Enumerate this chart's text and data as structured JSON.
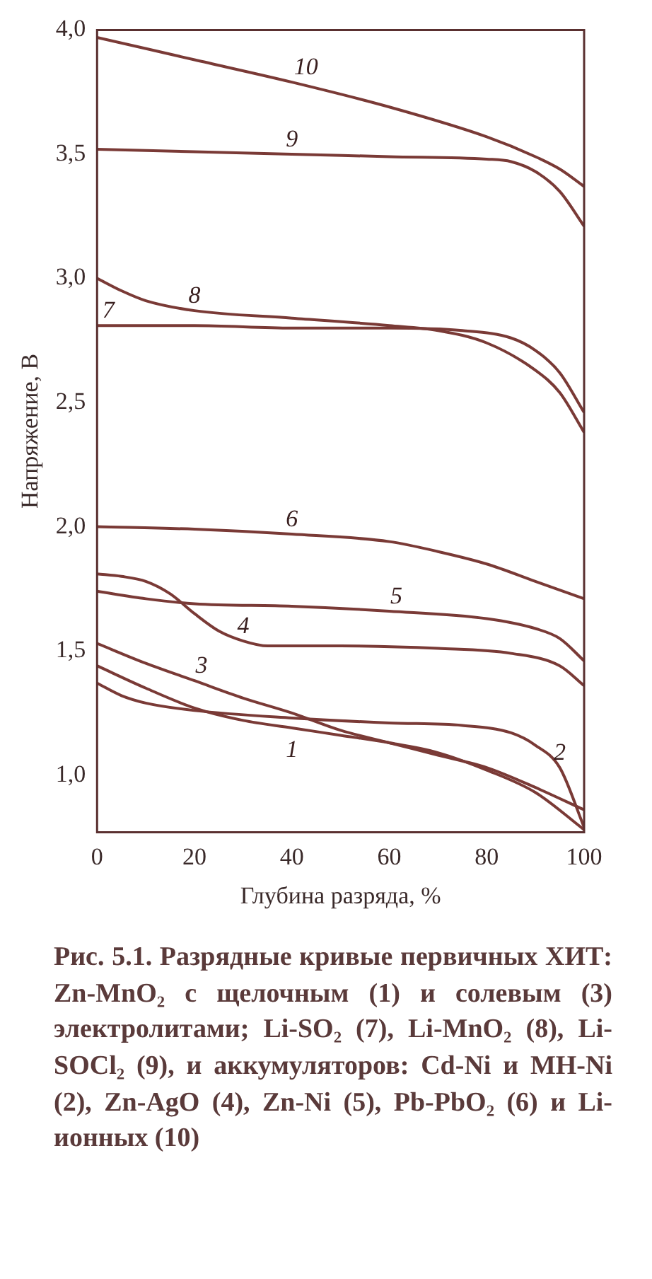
{
  "chart_data": {
    "type": "line",
    "xlabel": "Глубина разряда, %",
    "ylabel": "Напряжение, В",
    "xlim": [
      0,
      100
    ],
    "xticks": [
      0,
      20,
      40,
      60,
      80,
      100
    ],
    "ylim": [
      0.77,
      4.0
    ],
    "yticks": [
      {
        "value": 1.0,
        "label": "1,0"
      },
      {
        "value": 1.5,
        "label": "1,5"
      },
      {
        "value": 2.0,
        "label": "2,0"
      },
      {
        "value": 2.5,
        "label": "2,5"
      },
      {
        "value": 3.0,
        "label": "3,0"
      },
      {
        "value": 3.5,
        "label": "3,5"
      },
      {
        "value": 4.0,
        "label": "4,0"
      }
    ],
    "grid": false,
    "legend": false,
    "marker": "none",
    "line_style": "solid",
    "series": [
      {
        "name": "1",
        "color": "#7a3a36",
        "x": [
          0,
          10,
          20,
          30,
          40,
          50,
          60,
          70,
          80,
          90,
          100
        ],
        "values": [
          1.44,
          1.35,
          1.27,
          1.22,
          1.19,
          1.16,
          1.13,
          1.09,
          1.02,
          0.93,
          0.78
        ]
      },
      {
        "name": "2",
        "color": "#7a3a36",
        "x": [
          0,
          5,
          10,
          20,
          40,
          60,
          75,
          85,
          90,
          95,
          100
        ],
        "values": [
          1.37,
          1.32,
          1.29,
          1.26,
          1.23,
          1.21,
          1.2,
          1.17,
          1.12,
          1.03,
          0.79
        ]
      },
      {
        "name": "3",
        "color": "#7a3a36",
        "x": [
          0,
          10,
          20,
          30,
          40,
          50,
          60,
          70,
          80,
          90,
          100
        ],
        "values": [
          1.53,
          1.45,
          1.38,
          1.31,
          1.25,
          1.18,
          1.13,
          1.08,
          1.03,
          0.95,
          0.86
        ]
      },
      {
        "name": "4",
        "color": "#7a3a36",
        "x": [
          0,
          5,
          10,
          15,
          20,
          25,
          30,
          35,
          50,
          70,
          85,
          95,
          100
        ],
        "values": [
          1.81,
          1.8,
          1.78,
          1.73,
          1.65,
          1.58,
          1.54,
          1.52,
          1.52,
          1.51,
          1.49,
          1.44,
          1.36
        ]
      },
      {
        "name": "5",
        "color": "#7a3a36",
        "x": [
          0,
          10,
          20,
          40,
          60,
          80,
          90,
          95,
          100
        ],
        "values": [
          1.74,
          1.71,
          1.69,
          1.68,
          1.66,
          1.63,
          1.59,
          1.55,
          1.46
        ]
      },
      {
        "name": "6",
        "color": "#7a3a36",
        "x": [
          0,
          20,
          40,
          60,
          70,
          80,
          90,
          100
        ],
        "values": [
          2.0,
          1.99,
          1.97,
          1.94,
          1.9,
          1.85,
          1.78,
          1.71
        ]
      },
      {
        "name": "7",
        "color": "#7a3a36",
        "x": [
          0,
          20,
          40,
          60,
          75,
          85,
          90,
          95,
          100
        ],
        "values": [
          2.81,
          2.81,
          2.8,
          2.8,
          2.79,
          2.76,
          2.71,
          2.62,
          2.46
        ]
      },
      {
        "name": "8",
        "color": "#7a3a36",
        "x": [
          0,
          5,
          10,
          20,
          40,
          60,
          70,
          80,
          90,
          95,
          100
        ],
        "values": [
          3.0,
          2.95,
          2.91,
          2.87,
          2.84,
          2.81,
          2.79,
          2.74,
          2.63,
          2.54,
          2.38
        ]
      },
      {
        "name": "9",
        "color": "#7a3a36",
        "x": [
          0,
          20,
          40,
          60,
          80,
          85,
          90,
          95,
          100
        ],
        "values": [
          3.52,
          3.51,
          3.5,
          3.49,
          3.48,
          3.47,
          3.43,
          3.35,
          3.21
        ]
      },
      {
        "name": "10",
        "color": "#7a3a36",
        "x": [
          0,
          20,
          40,
          60,
          80,
          90,
          95,
          100
        ],
        "values": [
          3.97,
          3.88,
          3.79,
          3.69,
          3.57,
          3.49,
          3.44,
          3.37
        ]
      }
    ],
    "annotations": [
      "Рис. 5.1. Разрядные кривые первичных ХИТ: Zn-MnO₂ с щелочным (1) и солевым (3) электролитами; Li-SO₂ (7), Li-MnO₂ (8), Li-SOCl₂ (9), и аккумуляторов: Cd-Ni и MH-Ni (2), Zn-AgO (4), Zn-Ni (5), Pb-PbO₂ (6) и Li-ионных (10)"
    ]
  }
}
